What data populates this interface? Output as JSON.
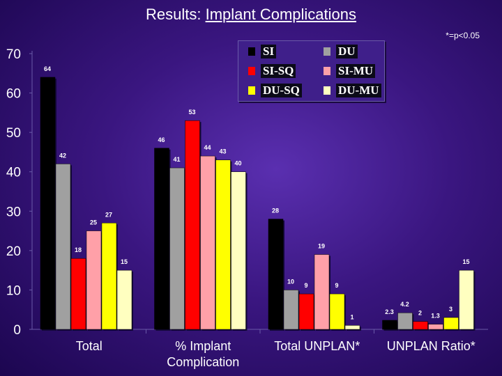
{
  "title": {
    "prefix": "Results: ",
    "main": "Implant Complications"
  },
  "note": "*=p<0.05",
  "chart_data": {
    "type": "bar",
    "categories": [
      "Total",
      "% Implant Complication",
      "Total UNPLAN*",
      "UNPLAN Ratio*"
    ],
    "category_lines": [
      [
        "Total"
      ],
      [
        "% Implant",
        "Complication"
      ],
      [
        "Total UNPLAN*"
      ],
      [
        "UNPLAN Ratio*"
      ]
    ],
    "ylim": [
      0,
      70
    ],
    "yticks": [
      "0",
      "10",
      "20",
      "30",
      "40",
      "50",
      "60",
      "70"
    ],
    "series": [
      {
        "name": "SI",
        "color": "#000000",
        "values": [
          64,
          46,
          28,
          2.3
        ],
        "labels": [
          "64",
          "46",
          "28",
          "2.3"
        ]
      },
      {
        "name": "DU",
        "color": "#a0a0a0",
        "values": [
          42,
          41,
          10,
          4.2
        ],
        "labels": [
          "42",
          "41",
          "10",
          "4.2"
        ]
      },
      {
        "name": "SI-SQ",
        "color": "#ff0000",
        "values": [
          18,
          53,
          9,
          2
        ],
        "labels": [
          "18",
          "53",
          "9",
          "2"
        ]
      },
      {
        "name": "SI-MU",
        "color": "#ffa0a8",
        "values": [
          25,
          44,
          19,
          1.3
        ],
        "labels": [
          "25",
          "44",
          "19",
          "1.3"
        ]
      },
      {
        "name": "DU-SQ",
        "color": "#ffff00",
        "values": [
          27,
          43,
          9,
          3
        ],
        "labels": [
          "27",
          "43",
          "9",
          "3"
        ]
      },
      {
        "name": "DU-MU",
        "color": "#ffffc0",
        "values": [
          15,
          40,
          1,
          15
        ],
        "labels": [
          "15",
          "40",
          "1",
          "15"
        ]
      }
    ]
  }
}
